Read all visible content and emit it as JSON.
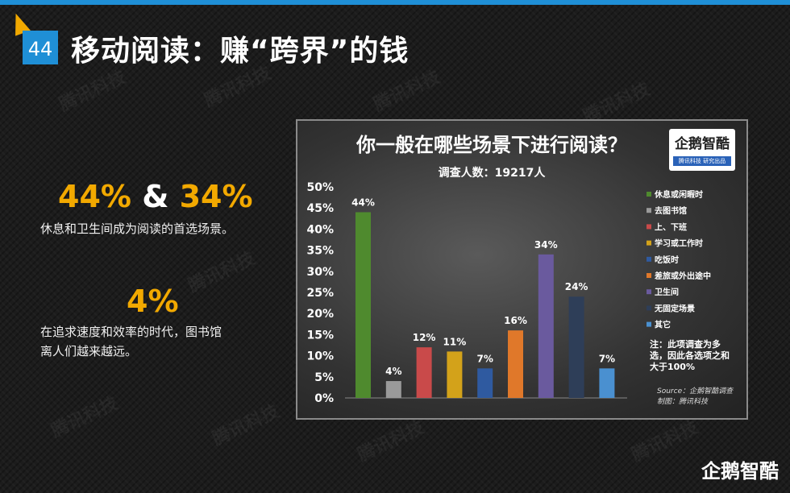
{
  "slide": {
    "number": "44",
    "title": "移动阅读：赚“跨界”的钱"
  },
  "left_panel": {
    "stat1": {
      "value_a": "44%",
      "amp": "&",
      "value_b": "34%",
      "caption": "休息和卫生间成为阅读的首选场景。"
    },
    "stat2": {
      "value": "4%",
      "caption_line1": "在追求速度和效率的时代，图书馆",
      "caption_line2": "离人们越来越远。"
    }
  },
  "watermark": "腾讯科技",
  "brand_mark": "企鹅智酷",
  "logo": {
    "main": "企鹅智酷",
    "sub": "腾讯科技 研究出品"
  },
  "colors": {
    "accent_blue": "#1f8fd6",
    "accent_orange": "#f2a900"
  },
  "chart_data": {
    "type": "bar",
    "title": "你一般在哪些场景下进行阅读？",
    "subtitle": "调查人数：19217人",
    "categories": [
      "休息或闲暇时",
      "去图书馆",
      "上、下班",
      "学习或工作时",
      "吃饭时",
      "差旅或外出途中",
      "卫生间",
      "无固定场景",
      "其它"
    ],
    "values": [
      44,
      4,
      12,
      11,
      7,
      16,
      34,
      24,
      7
    ],
    "value_labels": [
      "44%",
      "4%",
      "12%",
      "11%",
      "7%",
      "16%",
      "34%",
      "24%",
      "7%"
    ],
    "colors": [
      "#4f8a2e",
      "#9a9a9a",
      "#c94a4a",
      "#d3a21a",
      "#2f5aa0",
      "#e0782a",
      "#6a5a9e",
      "#2e3e58",
      "#4a90d0"
    ],
    "y_ticks": [
      "0%",
      "5%",
      "10%",
      "15%",
      "20%",
      "25%",
      "30%",
      "35%",
      "40%",
      "45%",
      "50%"
    ],
    "ylim": [
      0,
      50
    ],
    "legend_position": "right",
    "note": [
      "注：此项调查为多",
      "选，因此各选项之和",
      "大于100%"
    ],
    "source": "Source：企鹅智酷调查",
    "credit": "制图：腾讯科技"
  }
}
